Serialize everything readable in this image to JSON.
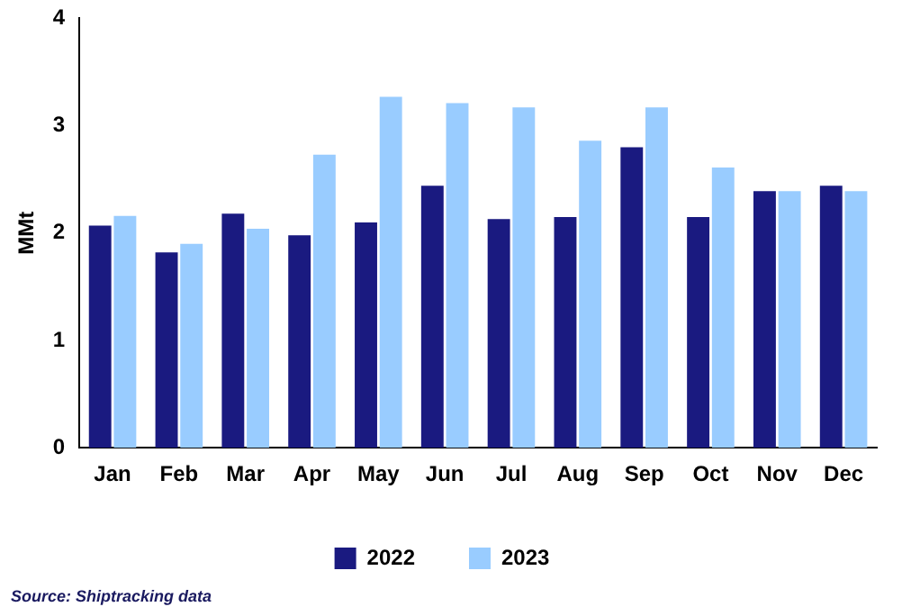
{
  "chart_data": {
    "type": "bar",
    "ylabel": "MMt",
    "categories": [
      "Jan",
      "Feb",
      "Mar",
      "Apr",
      "May",
      "Jun",
      "Jul",
      "Aug",
      "Sep",
      "Oct",
      "Nov",
      "Dec"
    ],
    "series": [
      {
        "name": "2022",
        "color": "#1a1a80",
        "values": [
          2.07,
          1.82,
          2.18,
          1.98,
          2.1,
          2.44,
          2.13,
          2.15,
          2.8,
          2.15,
          2.39,
          2.44
        ]
      },
      {
        "name": "2023",
        "color": "#99ccff",
        "values": [
          2.16,
          1.9,
          2.04,
          2.73,
          3.27,
          3.21,
          3.17,
          2.86,
          3.17,
          2.61,
          2.39,
          2.39
        ]
      }
    ],
    "ylim": [
      0,
      4
    ],
    "yticks": [
      0,
      1,
      2,
      3,
      4
    ],
    "grid": false,
    "legend": "bottom",
    "annotations": [
      "Source: Shiptracking data"
    ]
  }
}
